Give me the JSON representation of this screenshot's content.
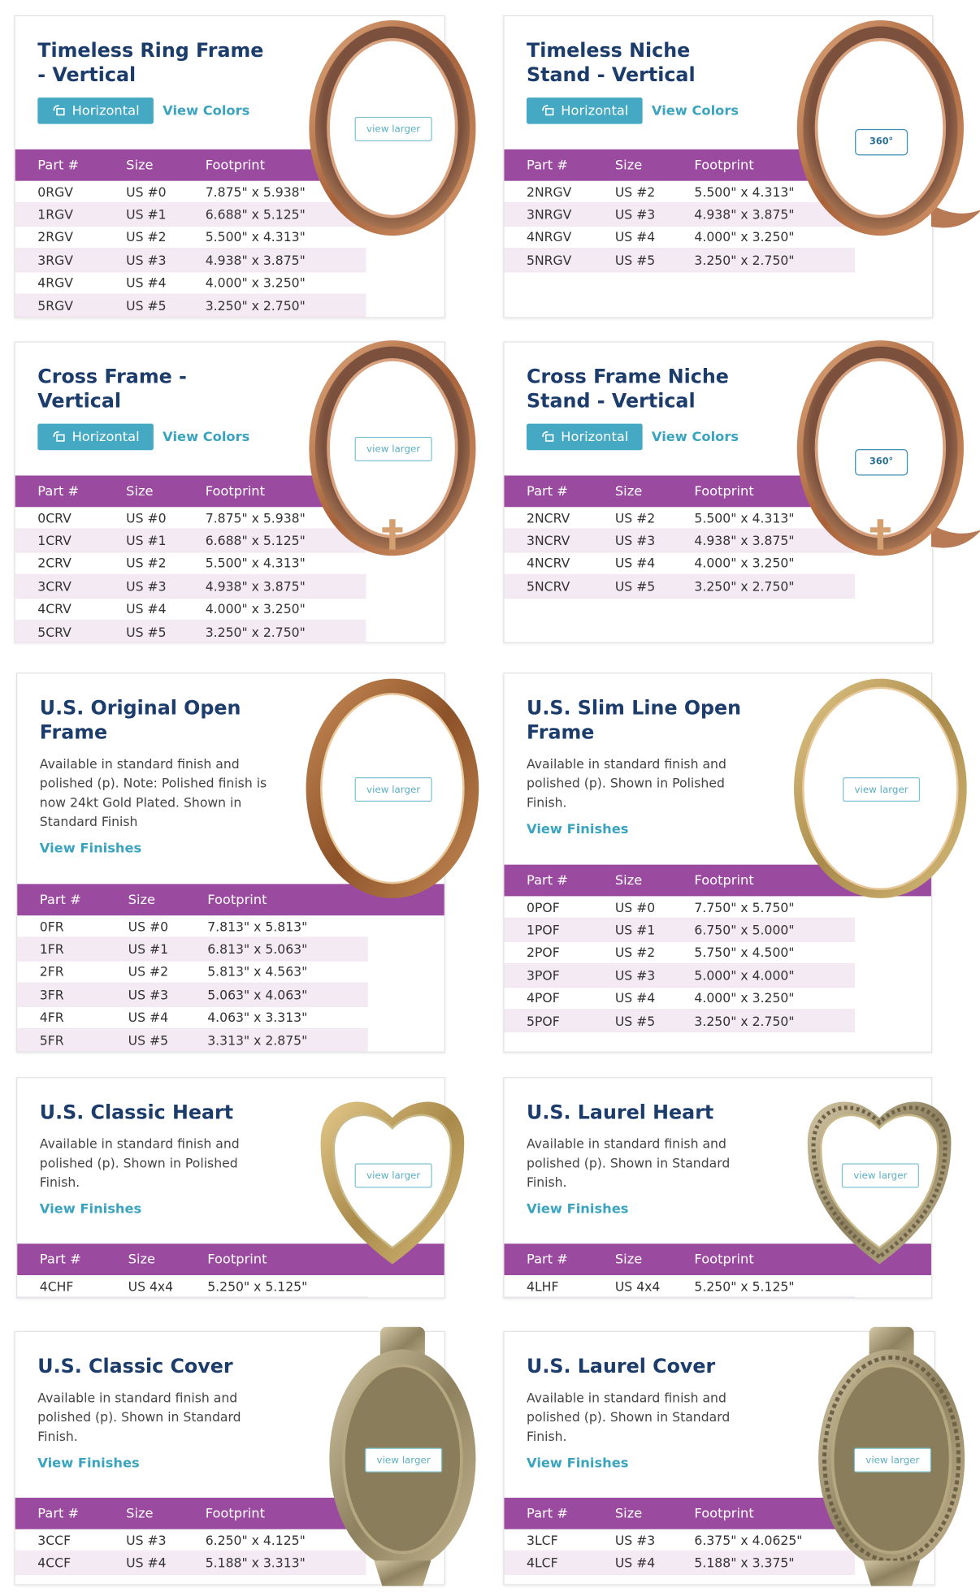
{
  "cards": [
    {
      "title": [
        "Timeless Ring Frame",
        "- Vertical"
      ],
      "buttons": [
        "Horizontal",
        "View Colors"
      ],
      "image_button": "view larger",
      "table": {
        "headers": [
          "Part #",
          "Size",
          "Footprint"
        ],
        "rows": [
          [
            "0RGV",
            "US #0",
            "7.875\" x 5.938\""
          ],
          [
            "1RGV",
            "US #1",
            "6.688\" x 5.125\""
          ],
          [
            "2RGV",
            "US #2",
            "5.500\" x 4.313\""
          ],
          [
            "3RGV",
            "US #3",
            "4.938\" x 3.875\""
          ],
          [
            "4RGV",
            "US #4",
            "4.000\" x 3.250\""
          ],
          [
            "5RGV",
            "US #5",
            "3.250\" x 2.750\""
          ]
        ]
      }
    },
    {
      "title": [
        "Timeless Niche",
        "Stand - Vertical"
      ],
      "buttons": [
        "Horizontal",
        "View Colors"
      ],
      "badge": "360°",
      "table": {
        "headers": [
          "Part #",
          "Size",
          "Footprint"
        ],
        "rows": [
          [
            "2NRGV",
            "US #2",
            "5.500\" x 4.313\""
          ],
          [
            "3NRGV",
            "US #3",
            "4.938\" x 3.875\""
          ],
          [
            "4NRGV",
            "US #4",
            "4.000\" x 3.250\""
          ],
          [
            "5NRGV",
            "US #5",
            "3.250\" x 2.750\""
          ]
        ]
      }
    },
    {
      "title": [
        "Cross Frame -",
        "Vertical"
      ],
      "buttons": [
        "Horizontal",
        "View Colors"
      ],
      "image_button": "view larger",
      "table": {
        "headers": [
          "Part #",
          "Size",
          "Footprint"
        ],
        "rows": [
          [
            "0CRV",
            "US #0",
            "7.875\" x 5.938\""
          ],
          [
            "1CRV",
            "US #1",
            "6.688\" x 5.125\""
          ],
          [
            "2CRV",
            "US #2",
            "5.500\" x 4.313\""
          ],
          [
            "3CRV",
            "US #3",
            "4.938\" x 3.875\""
          ],
          [
            "4CRV",
            "US #4",
            "4.000\" x 3.250\""
          ],
          [
            "5CRV",
            "US #5",
            "3.250\" x 2.750\""
          ]
        ]
      }
    },
    {
      "title": [
        "Cross Frame Niche",
        "Stand - Vertical"
      ],
      "buttons": [
        "Horizontal",
        "View Colors"
      ],
      "badge": "360°",
      "table": {
        "headers": [
          "Part #",
          "Size",
          "Footprint"
        ],
        "rows": [
          [
            "2NCRV",
            "US #2",
            "5.500\" x 4.313\""
          ],
          [
            "3NCRV",
            "US #3",
            "4.938\" x 3.875\""
          ],
          [
            "4NCRV",
            "US #4",
            "4.000\" x 3.250\""
          ],
          [
            "5NCRV",
            "US #5",
            "3.250\" x 2.750\""
          ]
        ]
      }
    },
    {
      "title": [
        "U.S. Original Open",
        "Frame"
      ],
      "description": "Available in standard finish and polished (p). Note: Polished finish is now 24kt Gold Plated. Shown in Standard Finish",
      "link": "View Finishes",
      "image_button": "view larger",
      "table": {
        "headers": [
          "Part #",
          "Size",
          "Footprint"
        ],
        "rows": [
          [
            "0FR",
            "US #0",
            "7.813\" x 5.813\""
          ],
          [
            "1FR",
            "US #1",
            "6.813\" x 5.063\""
          ],
          [
            "2FR",
            "US #2",
            "5.813\" x 4.563\""
          ],
          [
            "3FR",
            "US #3",
            "5.063\" x 4.063\""
          ],
          [
            "4FR",
            "US #4",
            "4.063\" x 3.313\""
          ],
          [
            "5FR",
            "US #5",
            "3.313\" x 2.875\""
          ]
        ]
      }
    },
    {
      "title": [
        "U.S. Slim Line Open",
        "Frame"
      ],
      "description": "Available in standard finish and polished (p). Shown in Polished Finish.",
      "link": "View Finishes",
      "image_button": "view larger",
      "table": {
        "headers": [
          "Part #",
          "Size",
          "Footprint"
        ],
        "rows": [
          [
            "0POF",
            "US #0",
            "7.750\" x 5.750\""
          ],
          [
            "1POF",
            "US #1",
            "6.750\" x 5.000\""
          ],
          [
            "2POF",
            "US #2",
            "5.750\" x 4.500\""
          ],
          [
            "3POF",
            "US #3",
            "5.000\" x 4.000\""
          ],
          [
            "4POF",
            "US #4",
            "4.000\" x 3.250\""
          ],
          [
            "5POF",
            "US #5",
            "3.250\" x 2.750\""
          ]
        ]
      }
    },
    {
      "title": [
        "U.S. Classic Heart"
      ],
      "description": "Available in standard finish and polished (p). Shown in Polished Finish.",
      "link": "View Finishes",
      "image_button": "view larger",
      "table": {
        "headers": [
          "Part #",
          "Size",
          "Footprint"
        ],
        "rows": [
          [
            "4CHF",
            "US 4x4",
            "5.250\" x 5.125\""
          ]
        ]
      }
    },
    {
      "title": [
        "U.S. Laurel Heart"
      ],
      "description": "Available in standard finish and polished (p). Shown in Standard Finish.",
      "link": "View Finishes",
      "image_button": "view larger",
      "table": {
        "headers": [
          "Part #",
          "Size",
          "Footprint"
        ],
        "rows": [
          [
            "4LHF",
            "US 4x4",
            "5.250\" x 5.125\""
          ]
        ]
      }
    },
    {
      "title": [
        "U.S. Classic Cover"
      ],
      "description": "Available in standard finish and polished (p). Shown in Standard Finish.",
      "link": "View Finishes",
      "image_button": "view larger",
      "table": {
        "headers": [
          "Part #",
          "Size",
          "Footprint"
        ],
        "rows": [
          [
            "3CCF",
            "US #3",
            "6.250\" x 4.125\""
          ],
          [
            "4CCF",
            "US #4",
            "5.188\" x 3.313\""
          ]
        ]
      }
    },
    {
      "title": [
        "U.S. Laurel Cover"
      ],
      "description": "Available in standard finish and polished (p). Shown in Standard Finish.",
      "link": "View Finishes",
      "image_button": "view larger",
      "table": {
        "headers": [
          "Part #",
          "Size",
          "Footprint"
        ],
        "rows": [
          [
            "3LCF",
            "US #3",
            "6.375\" x 4.0625\""
          ],
          [
            "4LCF",
            "US #4",
            "5.188\" x 3.375\""
          ]
        ]
      }
    }
  ]
}
